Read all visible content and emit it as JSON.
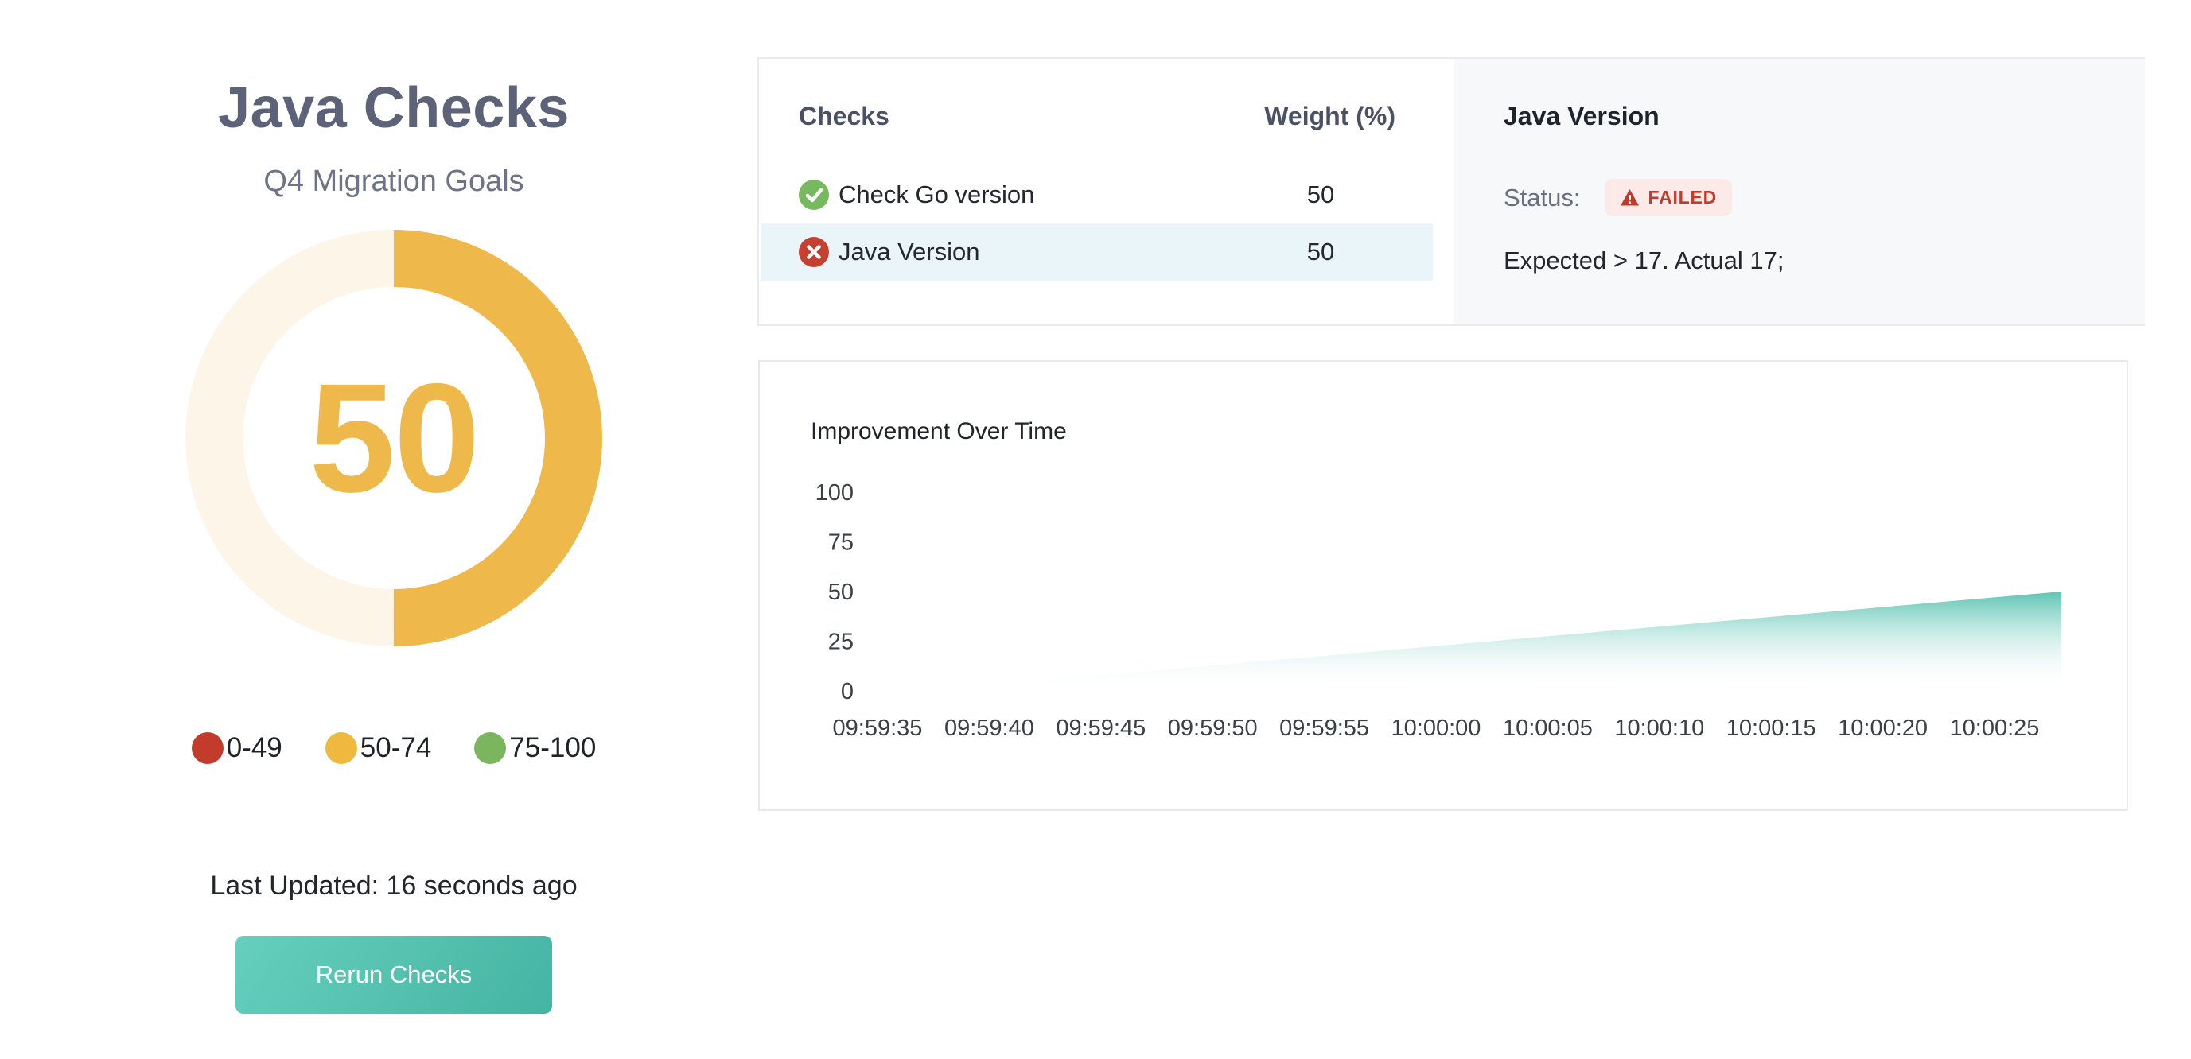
{
  "gauge_panel": {
    "title": "Java Checks",
    "subtitle": "Q4 Migration Goals",
    "score": 50,
    "score_max": 100,
    "arc_color": "#EEB84A",
    "track_color": "#FDF5E8",
    "legend": [
      {
        "label": "0-49",
        "color": "#C23B2B"
      },
      {
        "label": "50-74",
        "color": "#EFB83E"
      },
      {
        "label": "75-100",
        "color": "#7BB55E"
      }
    ],
    "last_updated": "Last Updated: 16 seconds ago",
    "rerun_button_label": "Rerun Checks",
    "button_gradient": [
      "#66CFBD",
      "#45B4A2"
    ]
  },
  "checks_panel": {
    "columns": [
      "Checks",
      "Weight (%)"
    ],
    "rows": [
      {
        "name": "Check Go version",
        "weight": "50",
        "status": "passed",
        "icon": "check-circle",
        "selected": false
      },
      {
        "name": "Java Version",
        "weight": "50",
        "status": "failed",
        "icon": "x-circle",
        "selected": true
      }
    ],
    "status_colors": {
      "passed": "#77B95E",
      "failed": "#C6402F"
    },
    "selected_row_bg": "#E9F5F9"
  },
  "detail_panel": {
    "title": "Java Version",
    "status_label": "Status:",
    "badge_text": "FAILED",
    "badge_icon": "warning-triangle",
    "badge_text_color": "#C33A2E",
    "badge_bg": "#FBEAE8",
    "message": "Expected > 17. Actual 17;"
  },
  "chart_data": {
    "type": "area",
    "title": "Improvement Over Time",
    "xlabel": "",
    "ylabel": "",
    "x_ticks": [
      "09:59:35",
      "09:59:40",
      "09:59:45",
      "09:59:50",
      "09:59:55",
      "10:00:00",
      "10:00:05",
      "10:00:10",
      "10:00:15",
      "10:00:20",
      "10:00:25"
    ],
    "tick_interval_seconds": 5,
    "y_ticks": [
      0,
      25,
      50,
      75,
      100
    ],
    "ylim": [
      0,
      100
    ],
    "grid": false,
    "legend_position": "none",
    "series": [
      {
        "name": "improvement",
        "color": "#50BFAD",
        "points": [
          {
            "t": "09:59:37",
            "v": 0
          },
          {
            "t": "10:00:28",
            "v": 50
          }
        ]
      }
    ]
  }
}
